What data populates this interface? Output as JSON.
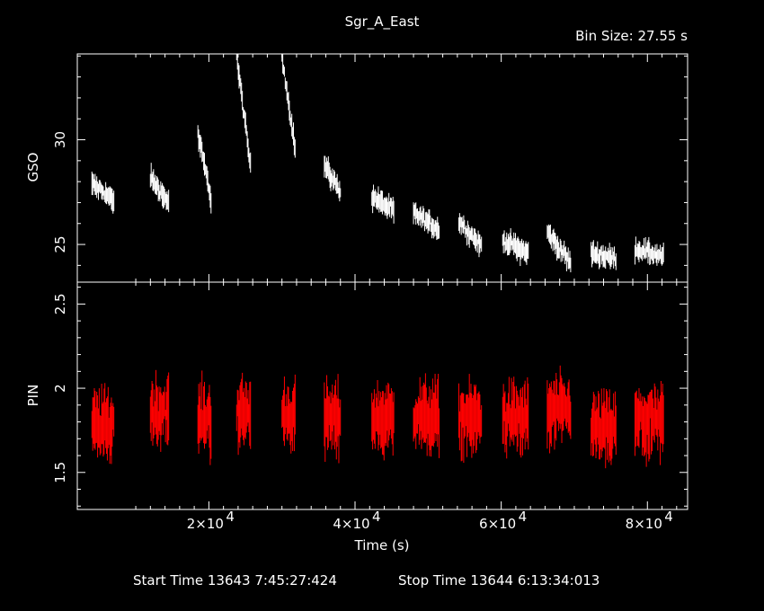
{
  "title": "Sgr_A_East",
  "bin_size": "Bin Size: 27.55 s",
  "start_time": "Start Time 13643  7:45:27:424",
  "stop_time": "Stop Time 13644  6:13:34:013",
  "chart_data": [
    {
      "type": "scatter",
      "panel": "top",
      "title": "Sgr_A_East",
      "ylabel": "GSO",
      "xlabel": "",
      "xlim": [
        2000,
        85500
      ],
      "ylim": [
        23.2,
        34.1
      ],
      "yticks": [
        25,
        30
      ],
      "yticklabels": [
        "25",
        "30"
      ],
      "color": "#ffffff",
      "series": [
        {
          "segments": [
            {
              "x": [
                4000,
                7000
              ],
              "y": [
                27.9,
                27.1
              ]
            },
            {
              "x": [
                12000,
                14500
              ],
              "y": [
                28.2,
                27.0
              ]
            },
            {
              "x": [
                18500,
                20300
              ],
              "y": [
                30.3,
                27.2
              ]
            },
            {
              "x": [
                23800,
                25700
              ],
              "y": [
                34.0,
                28.7
              ]
            },
            {
              "x": [
                30000,
                31800
              ],
              "y": [
                34.0,
                29.6
              ]
            },
            {
              "x": [
                35800,
                38000
              ],
              "y": [
                28.8,
                27.5
              ]
            },
            {
              "x": [
                42300,
                45300
              ],
              "y": [
                27.3,
                26.6
              ]
            },
            {
              "x": [
                48000,
                51500
              ],
              "y": [
                26.5,
                25.7
              ]
            },
            {
              "x": [
                54200,
                57300
              ],
              "y": [
                26.1,
                24.9
              ]
            },
            {
              "x": [
                60200,
                63700
              ],
              "y": [
                25.2,
                24.6
              ]
            },
            {
              "x": [
                66300,
                69500
              ],
              "y": [
                25.6,
                24.1
              ]
            },
            {
              "x": [
                72300,
                75700
              ],
              "y": [
                24.6,
                24.3
              ]
            },
            {
              "x": [
                78300,
                82200
              ],
              "y": [
                24.8,
                24.4
              ]
            }
          ]
        }
      ]
    },
    {
      "type": "scatter",
      "panel": "bottom",
      "ylabel": "PIN",
      "xlabel": "Time (s)",
      "xlim": [
        2000,
        85500
      ],
      "ylim": [
        1.28,
        2.63
      ],
      "yticks": [
        1.5,
        2,
        2.5
      ],
      "yticklabels": [
        "1.5",
        "2",
        "2.5"
      ],
      "xticks": [
        20000,
        40000,
        60000,
        80000
      ],
      "xticklabels": [
        "2×10",
        "4×10",
        "6×10",
        "8×10"
      ],
      "xtick_exponent": "4",
      "color": "#ff0000",
      "series": [
        {
          "segments": [
            {
              "x": [
                4000,
                7000
              ],
              "y": [
                1.78,
                1.78
              ]
            },
            {
              "x": [
                12000,
                14500
              ],
              "y": [
                1.86,
                1.86
              ]
            },
            {
              "x": [
                18500,
                20300
              ],
              "y": [
                1.82,
                1.82
              ]
            },
            {
              "x": [
                23800,
                25700
              ],
              "y": [
                1.85,
                1.85
              ]
            },
            {
              "x": [
                30000,
                31800
              ],
              "y": [
                1.84,
                1.84
              ]
            },
            {
              "x": [
                35800,
                38000
              ],
              "y": [
                1.82,
                1.82
              ]
            },
            {
              "x": [
                42300,
                45300
              ],
              "y": [
                1.82,
                1.82
              ]
            },
            {
              "x": [
                48000,
                51500
              ],
              "y": [
                1.83,
                1.83
              ]
            },
            {
              "x": [
                54200,
                57300
              ],
              "y": [
                1.82,
                1.82
              ]
            },
            {
              "x": [
                60200,
                63700
              ],
              "y": [
                1.82,
                1.82
              ]
            },
            {
              "x": [
                66300,
                69500
              ],
              "y": [
                1.86,
                1.86
              ]
            },
            {
              "x": [
                72300,
                75700
              ],
              "y": [
                1.76,
                1.76
              ]
            },
            {
              "x": [
                78300,
                82200
              ],
              "y": [
                1.8,
                1.8
              ]
            }
          ]
        }
      ]
    }
  ]
}
